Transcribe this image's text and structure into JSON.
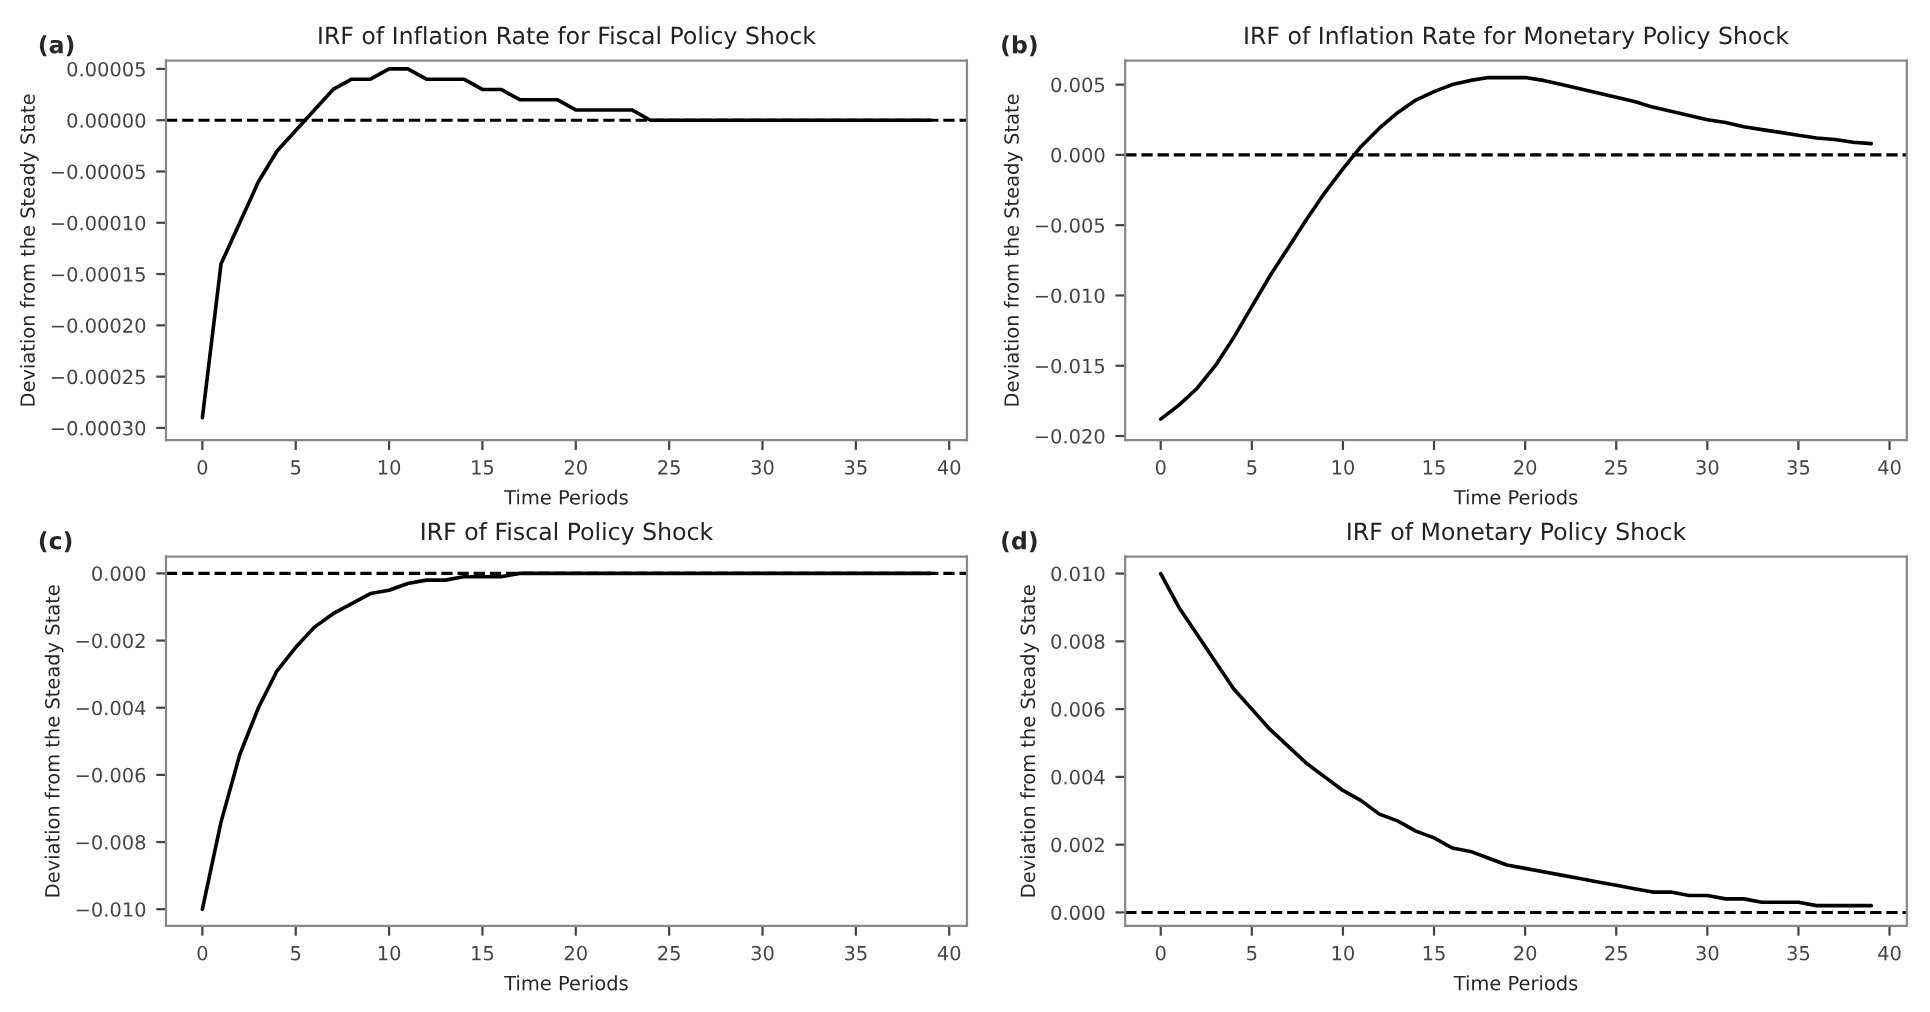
{
  "chart_data": [
    {
      "type": "line",
      "title": "IRF of Inflation Rate for Fiscal Policy Shock",
      "xlabel": "Time Periods",
      "ylabel": "Deviation from the Steady State",
      "annotations": [
        "(a)"
      ],
      "x": [
        0,
        1,
        2,
        3,
        4,
        5,
        6,
        7,
        8,
        9,
        10,
        11,
        12,
        13,
        14,
        15,
        16,
        17,
        18,
        19,
        20,
        21,
        22,
        23,
        24,
        25,
        26,
        27,
        28,
        29,
        30,
        31,
        32,
        33,
        34,
        35,
        36,
        37,
        38,
        39
      ],
      "series": [
        {
          "color": "#000000",
          "values": [
            -0.00029,
            -0.00014,
            -0.0001,
            -6e-05,
            -3e-05,
            -1e-05,
            1e-05,
            3e-05,
            4e-05,
            4e-05,
            5e-05,
            5e-05,
            4e-05,
            4e-05,
            4e-05,
            3e-05,
            3e-05,
            2e-05,
            2e-05,
            2e-05,
            1e-05,
            1e-05,
            1e-05,
            1e-05,
            0.0,
            0.0,
            0.0,
            0.0,
            0.0,
            0.0,
            0.0,
            0.0,
            0.0,
            0.0,
            0.0,
            0.0,
            0.0,
            0.0,
            0.0,
            0.0
          ]
        }
      ],
      "xlim": [
        -1.95,
        40.95
      ],
      "xticks": [
        0,
        5,
        10,
        15,
        20,
        25,
        30,
        35,
        40
      ],
      "ylim": [
        -0.000312,
        5.8e-05
      ],
      "yticks": [
        {
          "value": -0.0003,
          "label": "−0.00030"
        },
        {
          "value": -0.00025,
          "label": "−0.00025"
        },
        {
          "value": -0.0002,
          "label": "−0.00020"
        },
        {
          "value": -0.00015,
          "label": "−0.00015"
        },
        {
          "value": -0.0001,
          "label": "−0.00010"
        },
        {
          "value": -5e-05,
          "label": "−0.00005"
        },
        {
          "value": 0,
          "label": "0.00000"
        },
        {
          "value": 5e-05,
          "label": "0.00005"
        }
      ],
      "ref_lines": [
        {
          "axis": "y",
          "value": 0,
          "color": "#000000",
          "line_style": "dashed"
        }
      ]
    },
    {
      "type": "line",
      "title": "IRF of Inflation Rate for Monetary Policy Shock",
      "xlabel": "Time Periods",
      "ylabel": "Deviation from the Steady State",
      "annotations": [
        "(b)"
      ],
      "x": [
        0,
        1,
        2,
        3,
        4,
        5,
        6,
        7,
        8,
        9,
        10,
        11,
        12,
        13,
        14,
        15,
        16,
        17,
        18,
        19,
        20,
        21,
        22,
        23,
        24,
        25,
        26,
        27,
        28,
        29,
        30,
        31,
        32,
        33,
        34,
        35,
        36,
        37,
        38,
        39
      ],
      "series": [
        {
          "color": "#000000",
          "values": [
            -0.0188,
            -0.0178,
            -0.0166,
            -0.015,
            -0.013,
            -0.0108,
            -0.0086,
            -0.0066,
            -0.0046,
            -0.0027,
            -0.001,
            0.0006,
            0.0019,
            0.003,
            0.0039,
            0.0045,
            0.005,
            0.0053,
            0.0055,
            0.0055,
            0.0055,
            0.0053,
            0.005,
            0.0047,
            0.0044,
            0.0041,
            0.0038,
            0.0034,
            0.0031,
            0.0028,
            0.0025,
            0.0023,
            0.002,
            0.0018,
            0.0016,
            0.0014,
            0.0012,
            0.0011,
            0.0009,
            0.0008
          ]
        }
      ],
      "xlim": [
        -1.95,
        40.95
      ],
      "xticks": [
        0,
        5,
        10,
        15,
        20,
        25,
        30,
        35,
        40
      ],
      "ylim": [
        -0.0203,
        0.0067
      ],
      "yticks": [
        {
          "value": -0.02,
          "label": "−0.020"
        },
        {
          "value": -0.015,
          "label": "−0.015"
        },
        {
          "value": -0.01,
          "label": "−0.010"
        },
        {
          "value": -0.005,
          "label": "−0.005"
        },
        {
          "value": 0,
          "label": "0.000"
        },
        {
          "value": 0.005,
          "label": "0.005"
        }
      ],
      "ref_lines": [
        {
          "axis": "y",
          "value": 0,
          "color": "#000000",
          "line_style": "dashed"
        }
      ]
    },
    {
      "type": "line",
      "title": "IRF of Fiscal Policy Shock",
      "xlabel": "Time Periods",
      "ylabel": "Deviation from the Steady State",
      "annotations": [
        "(c)"
      ],
      "x": [
        0,
        1,
        2,
        3,
        4,
        5,
        6,
        7,
        8,
        9,
        10,
        11,
        12,
        13,
        14,
        15,
        16,
        17,
        18,
        19,
        20,
        21,
        22,
        23,
        24,
        25,
        26,
        27,
        28,
        29,
        30,
        31,
        32,
        33,
        34,
        35,
        36,
        37,
        38,
        39
      ],
      "series": [
        {
          "color": "#000000",
          "values": [
            -0.01,
            -0.0074,
            -0.0054,
            -0.004,
            -0.0029,
            -0.0022,
            -0.0016,
            -0.0012,
            -0.0009,
            -0.0006,
            -0.0005,
            -0.0003,
            -0.0002,
            -0.0002,
            -0.0001,
            -0.0001,
            -0.0001,
            0.0,
            0.0,
            0.0,
            0.0,
            0.0,
            0.0,
            0.0,
            0.0,
            0.0,
            0.0,
            0.0,
            0.0,
            0.0,
            0.0,
            0.0,
            0.0,
            0.0,
            0.0,
            0.0,
            0.0,
            0.0,
            0.0,
            0.0
          ]
        }
      ],
      "xlim": [
        -1.95,
        40.95
      ],
      "xticks": [
        0,
        5,
        10,
        15,
        20,
        25,
        30,
        35,
        40
      ],
      "ylim": [
        -0.0105,
        0.0005
      ],
      "yticks": [
        {
          "value": -0.01,
          "label": "−0.010"
        },
        {
          "value": -0.008,
          "label": "−0.008"
        },
        {
          "value": -0.006,
          "label": "−0.006"
        },
        {
          "value": -0.004,
          "label": "−0.004"
        },
        {
          "value": -0.002,
          "label": "−0.002"
        },
        {
          "value": 0,
          "label": "0.000"
        }
      ],
      "ref_lines": [
        {
          "axis": "y",
          "value": 0,
          "color": "#000000",
          "line_style": "dashed"
        }
      ]
    },
    {
      "type": "line",
      "title": "IRF of Monetary Policy Shock",
      "xlabel": "Time Periods",
      "ylabel": "Deviation from the Steady State",
      "annotations": [
        "(d)"
      ],
      "x": [
        0,
        1,
        2,
        3,
        4,
        5,
        6,
        7,
        8,
        9,
        10,
        11,
        12,
        13,
        14,
        15,
        16,
        17,
        18,
        19,
        20,
        21,
        22,
        23,
        24,
        25,
        26,
        27,
        28,
        29,
        30,
        31,
        32,
        33,
        34,
        35,
        36,
        37,
        38,
        39
      ],
      "series": [
        {
          "color": "#000000",
          "values": [
            0.01,
            0.009,
            0.0082,
            0.0074,
            0.0066,
            0.006,
            0.0054,
            0.0049,
            0.0044,
            0.004,
            0.0036,
            0.0033,
            0.0029,
            0.0027,
            0.0024,
            0.0022,
            0.0019,
            0.0018,
            0.0016,
            0.0014,
            0.0013,
            0.0012,
            0.0011,
            0.001,
            0.0009,
            0.0008,
            0.0007,
            0.0006,
            0.0006,
            0.0005,
            0.0005,
            0.0004,
            0.0004,
            0.0003,
            0.0003,
            0.0003,
            0.0002,
            0.0002,
            0.0002,
            0.0002
          ]
        }
      ],
      "xlim": [
        -1.95,
        40.95
      ],
      "xticks": [
        0,
        5,
        10,
        15,
        20,
        25,
        30,
        35,
        40
      ],
      "ylim": [
        -0.0004,
        0.0105
      ],
      "yticks": [
        {
          "value": 0,
          "label": "0.000"
        },
        {
          "value": 0.002,
          "label": "0.002"
        },
        {
          "value": 0.004,
          "label": "0.004"
        },
        {
          "value": 0.006,
          "label": "0.006"
        },
        {
          "value": 0.008,
          "label": "0.008"
        },
        {
          "value": 0.01,
          "label": "0.010"
        }
      ],
      "ref_lines": [
        {
          "axis": "y",
          "value": 0,
          "color": "#000000",
          "line_style": "dashed"
        }
      ]
    }
  ]
}
